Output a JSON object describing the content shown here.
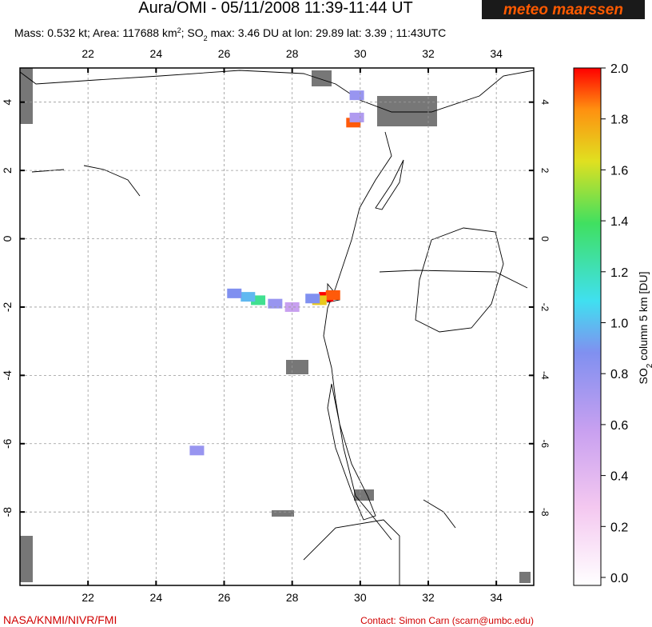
{
  "header": {
    "title": "Aura/OMI - 05/11/2008 11:39-11:44 UT",
    "logo": "meteo maarssen",
    "subtitle": [
      "Mass: 0.532 kt; Area: 117688 km",
      "2",
      "; SO",
      "2",
      " max: 3.46 DU at lon: 29.89 lat: 3.39 ; 11:43UTC"
    ]
  },
  "map": {
    "xlim": [
      20,
      35.1
    ],
    "ylim": [
      -10.15,
      5
    ],
    "xticks": [
      22,
      24,
      26,
      28,
      30,
      32,
      34
    ],
    "yticks": [
      4,
      2,
      0,
      -2,
      -4,
      -6,
      -8
    ],
    "plume_cells": [
      {
        "lon": 29.0,
        "lat": -1.7,
        "value": 2.0
      },
      {
        "lon": 29.2,
        "lat": -1.65,
        "value": 1.9
      },
      {
        "lon": 28.8,
        "lat": -1.8,
        "value": 1.7
      },
      {
        "lon": 28.6,
        "lat": -1.75,
        "value": 0.9
      },
      {
        "lon": 27.0,
        "lat": -1.8,
        "value": 1.3
      },
      {
        "lon": 26.7,
        "lat": -1.7,
        "value": 1.0
      },
      {
        "lon": 26.3,
        "lat": -1.6,
        "value": 0.9
      },
      {
        "lon": 27.5,
        "lat": -1.9,
        "value": 0.8
      },
      {
        "lon": 28.0,
        "lat": -2.0,
        "value": 0.6
      },
      {
        "lon": 29.8,
        "lat": 3.4,
        "value": 1.9
      },
      {
        "lon": 29.9,
        "lat": 3.55,
        "value": 0.7
      },
      {
        "lon": 29.9,
        "lat": 4.2,
        "value": 0.8
      },
      {
        "lon": 25.2,
        "lat": -6.2,
        "value": 0.8
      }
    ]
  },
  "colorbar": {
    "lim": [
      0,
      2
    ],
    "label": [
      "SO",
      "2",
      " column 5 km [DU]"
    ],
    "ticks": [
      {
        "value": 0,
        "label": "0.0"
      },
      {
        "value": 0.2,
        "label": "0.2"
      },
      {
        "value": 0.4,
        "label": "0.4"
      },
      {
        "value": 0.6,
        "label": "0.6"
      },
      {
        "value": 0.8,
        "label": "0.8"
      },
      {
        "value": 1,
        "label": "1.0"
      },
      {
        "value": 1.2,
        "label": "1.2"
      },
      {
        "value": 1.4,
        "label": "1.4"
      },
      {
        "value": 1.6,
        "label": "1.6"
      },
      {
        "value": 1.8,
        "label": "1.8"
      },
      {
        "value": 2,
        "label": "2.0"
      }
    ]
  },
  "footer": {
    "left": "NASA/KNMI/NIVR/FMI",
    "right": "Contact: Simon Carn (scarn@umbc.edu)"
  }
}
